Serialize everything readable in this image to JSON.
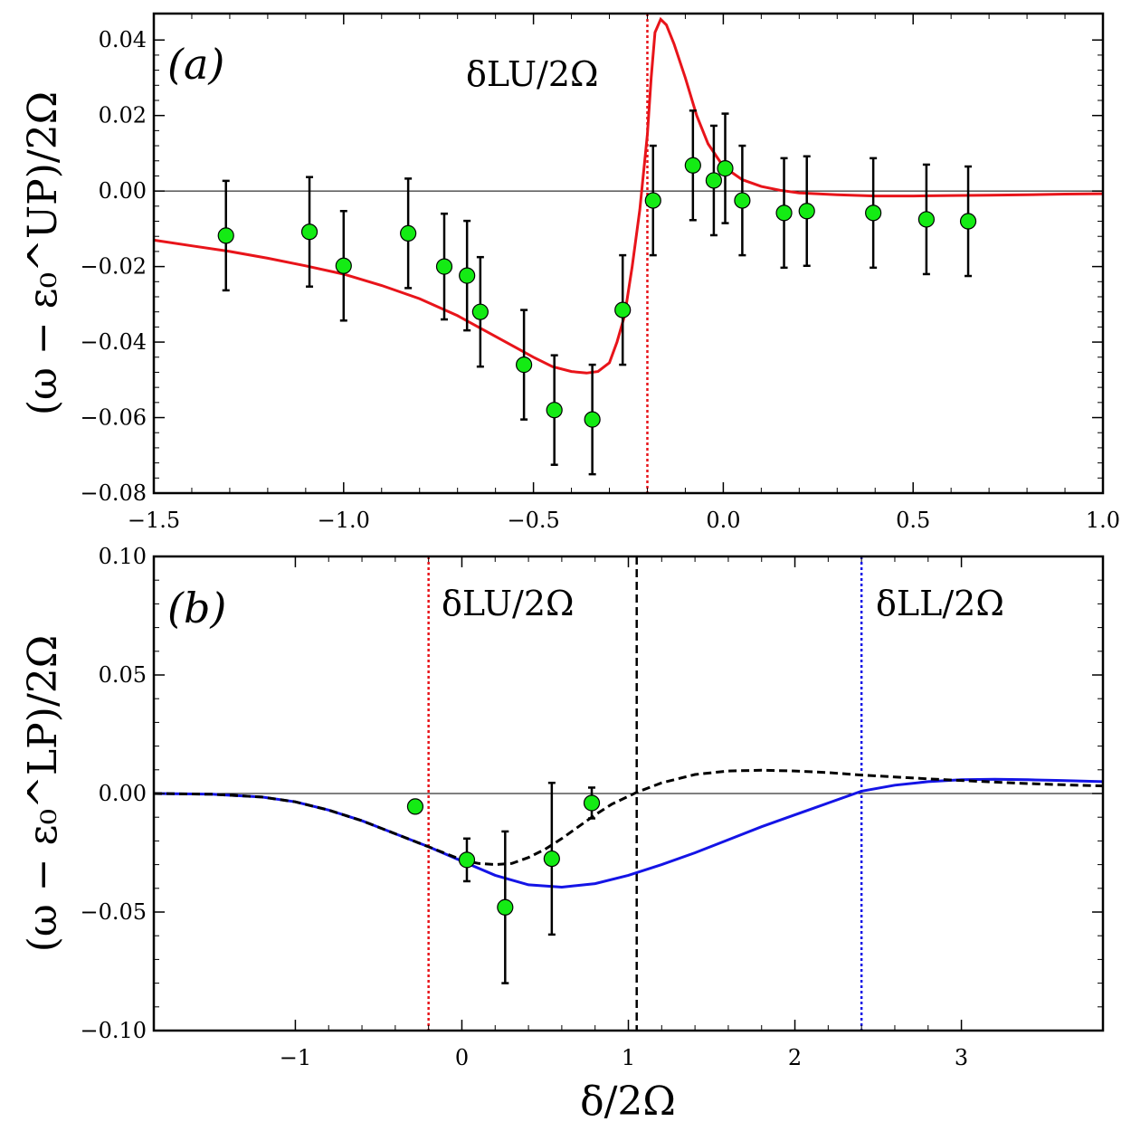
{
  "chart_data": [
    {
      "type": "scatter",
      "panel_label": "(a)",
      "ylabel": "(ω − ε₀^UP)/2Ω",
      "xlim": [
        -1.5,
        1.0
      ],
      "ylim": [
        -0.08,
        0.047
      ],
      "xticks": [
        -1.5,
        -1.0,
        -0.5,
        0.0,
        0.5,
        1.0
      ],
      "xtick_labels": [
        "−1.5",
        "−1.0",
        "−0.5",
        "0.0",
        "0.5",
        "1.0"
      ],
      "yticks": [
        0.04,
        0.02,
        0.0,
        -0.02,
        -0.04,
        -0.06,
        -0.08
      ],
      "ytick_labels": [
        "0.04",
        "0.02",
        "0.00",
        "−0.02",
        "−0.04",
        "−0.06",
        "−0.08"
      ],
      "zero_line": true,
      "vlines": [
        {
          "x": -0.2,
          "color": "#e8141a",
          "style": "dotted",
          "label": "δLU/2Ω"
        }
      ],
      "series": [
        {
          "kind": "line",
          "color": "#e8141a",
          "points": [
            [
              -1.5,
              -0.013
            ],
            [
              -1.4,
              -0.0145
            ],
            [
              -1.3,
              -0.016
            ],
            [
              -1.2,
              -0.0178
            ],
            [
              -1.1,
              -0.0198
            ],
            [
              -1.0,
              -0.022
            ],
            [
              -0.9,
              -0.025
            ],
            [
              -0.8,
              -0.0285
            ],
            [
              -0.7,
              -0.033
            ],
            [
              -0.6,
              -0.0385
            ],
            [
              -0.5,
              -0.044
            ],
            [
              -0.45,
              -0.0465
            ],
            [
              -0.4,
              -0.0478
            ],
            [
              -0.36,
              -0.0482
            ],
            [
              -0.33,
              -0.0478
            ],
            [
              -0.3,
              -0.0455
            ],
            [
              -0.28,
              -0.04
            ],
            [
              -0.26,
              -0.033
            ],
            [
              -0.24,
              -0.02
            ],
            [
              -0.22,
              -0.005
            ],
            [
              -0.2,
              0.015
            ],
            [
              -0.19,
              0.03
            ],
            [
              -0.18,
              0.042
            ],
            [
              -0.165,
              0.0455
            ],
            [
              -0.15,
              0.044
            ],
            [
              -0.13,
              0.039
            ],
            [
              -0.1,
              0.03
            ],
            [
              -0.07,
              0.02
            ],
            [
              -0.04,
              0.0125
            ],
            [
              0.0,
              0.0065
            ],
            [
              0.05,
              0.003
            ],
            [
              0.1,
              0.0012
            ],
            [
              0.15,
              0.0002
            ],
            [
              0.2,
              -0.0005
            ],
            [
              0.3,
              -0.001
            ],
            [
              0.4,
              -0.0013
            ],
            [
              0.5,
              -0.0013
            ],
            [
              0.6,
              -0.0012
            ],
            [
              0.7,
              -0.0011
            ],
            [
              0.8,
              -0.001
            ],
            [
              0.9,
              -0.0008
            ],
            [
              1.0,
              -0.0007
            ]
          ]
        },
        {
          "kind": "points",
          "color": "#14eb14",
          "points": [
            {
              "x": -1.31,
              "y": -0.0118,
              "err": 0.0145
            },
            {
              "x": -1.09,
              "y": -0.0108,
              "err": 0.0145
            },
            {
              "x": -1.0,
              "y": -0.0198,
              "err": 0.0145
            },
            {
              "x": -0.83,
              "y": -0.0112,
              "err": 0.0145
            },
            {
              "x": -0.735,
              "y": -0.02,
              "err": 0.014
            },
            {
              "x": -0.675,
              "y": -0.0224,
              "err": 0.0145
            },
            {
              "x": -0.64,
              "y": -0.032,
              "err": 0.0145
            },
            {
              "x": -0.525,
              "y": -0.046,
              "err": 0.0145
            },
            {
              "x": -0.445,
              "y": -0.058,
              "err": 0.0145
            },
            {
              "x": -0.345,
              "y": -0.0605,
              "err": 0.0145
            },
            {
              "x": -0.265,
              "y": -0.0315,
              "err": 0.0145
            },
            {
              "x": -0.185,
              "y": -0.0025,
              "err": 0.0145
            },
            {
              "x": -0.08,
              "y": 0.0068,
              "err": 0.0145
            },
            {
              "x": -0.025,
              "y": 0.0028,
              "err": 0.0145
            },
            {
              "x": 0.005,
              "y": 0.006,
              "err": 0.0145
            },
            {
              "x": 0.05,
              "y": -0.0025,
              "err": 0.0145
            },
            {
              "x": 0.16,
              "y": -0.0058,
              "err": 0.0145
            },
            {
              "x": 0.22,
              "y": -0.0053,
              "err": 0.0145
            },
            {
              "x": 0.395,
              "y": -0.0058,
              "err": 0.0145
            },
            {
              "x": 0.535,
              "y": -0.0075,
              "err": 0.0145
            },
            {
              "x": 0.645,
              "y": -0.008,
              "err": 0.0145
            }
          ]
        }
      ]
    },
    {
      "type": "scatter",
      "panel_label": "(b)",
      "xlabel": "δ/2Ω",
      "ylabel": "(ω − ε₀^LP)/2Ω",
      "xlim": [
        -1.85,
        3.85
      ],
      "ylim": [
        -0.1,
        0.1
      ],
      "xticks": [
        -1,
        0,
        1,
        2,
        3
      ],
      "xtick_labels": [
        "−1",
        "0",
        "1",
        "2",
        "3"
      ],
      "yticks": [
        0.1,
        0.05,
        0.0,
        -0.05,
        -0.1
      ],
      "ytick_labels": [
        "0.10",
        "0.05",
        "0.00",
        "−0.05",
        "−0.10"
      ],
      "zero_line": true,
      "vlines": [
        {
          "x": -0.2,
          "color": "#e8141a",
          "style": "dotted",
          "label": "δLU/2Ω"
        },
        {
          "x": 1.05,
          "color": "#000000",
          "style": "dashed",
          "label": ""
        },
        {
          "x": 2.4,
          "color": "#1414e6",
          "style": "dotted",
          "label": "δLL/2Ω"
        }
      ],
      "series": [
        {
          "kind": "line",
          "color": "#1414e6",
          "style": "solid",
          "points": [
            [
              -1.85,
              0.0
            ],
            [
              -1.5,
              -0.0003
            ],
            [
              -1.2,
              -0.0015
            ],
            [
              -1.0,
              -0.0035
            ],
            [
              -0.8,
              -0.007
            ],
            [
              -0.6,
              -0.0115
            ],
            [
              -0.4,
              -0.017
            ],
            [
              -0.2,
              -0.0225
            ],
            [
              0.0,
              -0.0285
            ],
            [
              0.2,
              -0.0345
            ],
            [
              0.4,
              -0.0385
            ],
            [
              0.6,
              -0.0395
            ],
            [
              0.8,
              -0.038
            ],
            [
              1.0,
              -0.0345
            ],
            [
              1.2,
              -0.03
            ],
            [
              1.4,
              -0.025
            ],
            [
              1.6,
              -0.0195
            ],
            [
              1.8,
              -0.014
            ],
            [
              2.0,
              -0.009
            ],
            [
              2.2,
              -0.004
            ],
            [
              2.4,
              0.001
            ],
            [
              2.6,
              0.0035
            ],
            [
              2.8,
              0.005
            ],
            [
              3.0,
              0.0058
            ],
            [
              3.2,
              0.006
            ],
            [
              3.4,
              0.0058
            ],
            [
              3.6,
              0.0055
            ],
            [
              3.85,
              0.005
            ]
          ]
        },
        {
          "kind": "line",
          "color": "#000000",
          "style": "dashed",
          "points": [
            [
              -1.85,
              0.0
            ],
            [
              -1.5,
              -0.0003
            ],
            [
              -1.2,
              -0.0015
            ],
            [
              -1.0,
              -0.0035
            ],
            [
              -0.8,
              -0.007
            ],
            [
              -0.6,
              -0.0115
            ],
            [
              -0.4,
              -0.017
            ],
            [
              -0.2,
              -0.0225
            ],
            [
              0.0,
              -0.028
            ],
            [
              0.1,
              -0.0295
            ],
            [
              0.2,
              -0.03
            ],
            [
              0.3,
              -0.0295
            ],
            [
              0.4,
              -0.027
            ],
            [
              0.5,
              -0.0235
            ],
            [
              0.6,
              -0.019
            ],
            [
              0.7,
              -0.014
            ],
            [
              0.8,
              -0.009
            ],
            [
              0.9,
              -0.0045
            ],
            [
              1.05,
              0.0005
            ],
            [
              1.2,
              0.0045
            ],
            [
              1.4,
              0.008
            ],
            [
              1.6,
              0.0095
            ],
            [
              1.8,
              0.0098
            ],
            [
              2.0,
              0.0095
            ],
            [
              2.2,
              0.0088
            ],
            [
              2.4,
              0.0078
            ],
            [
              2.6,
              0.007
            ],
            [
              2.8,
              0.0062
            ],
            [
              3.0,
              0.0055
            ],
            [
              3.2,
              0.0048
            ],
            [
              3.4,
              0.0042
            ],
            [
              3.6,
              0.0037
            ],
            [
              3.85,
              0.0032
            ]
          ]
        },
        {
          "kind": "points",
          "color": "#14eb14",
          "points": [
            {
              "x": -0.28,
              "y": -0.0055,
              "err": 0
            },
            {
              "x": 0.03,
              "y": -0.028,
              "err": 0.009
            },
            {
              "x": 0.26,
              "y": -0.048,
              "err": 0.032
            },
            {
              "x": 0.54,
              "y": -0.0275,
              "err": 0.032
            },
            {
              "x": 0.78,
              "y": -0.004,
              "err": 0.0065
            }
          ]
        }
      ]
    }
  ]
}
